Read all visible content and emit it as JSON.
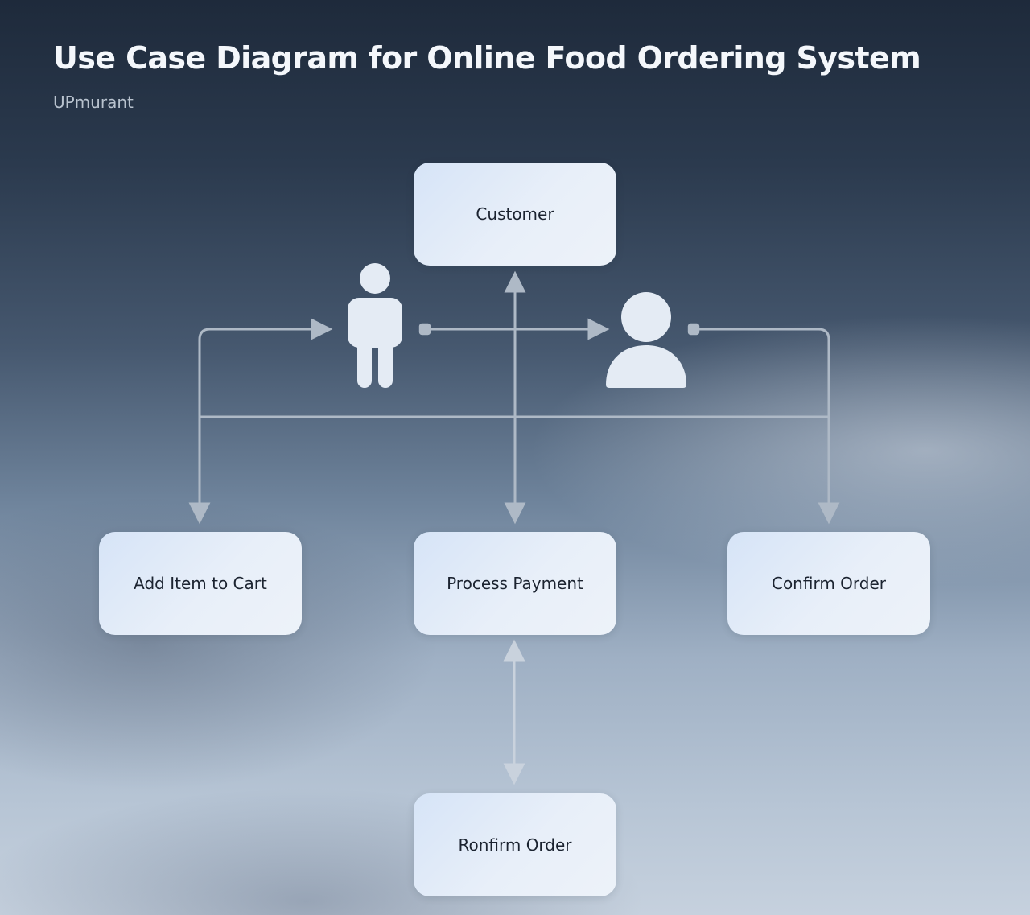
{
  "title": "Use Case Diagram for Online Food Ordering System",
  "subtitle": "UPmurant",
  "nodes": {
    "customer": "Customer",
    "add_item": "Add Item to Cart",
    "process_payment": "Process Payment",
    "confirm_order": "Confirm Order",
    "ronfirm_order": "Ronfirm Order"
  },
  "actors": {
    "standing": "person-standing-icon",
    "avatar": "user-avatar-icon"
  },
  "colors": {
    "title": "#f4f7fb",
    "subtitle": "#b9c3cf",
    "node_fill": "#e3ecf8",
    "node_text": "#1b2330",
    "connector": "#aeb9c6",
    "actor": "#e4ebf4"
  }
}
